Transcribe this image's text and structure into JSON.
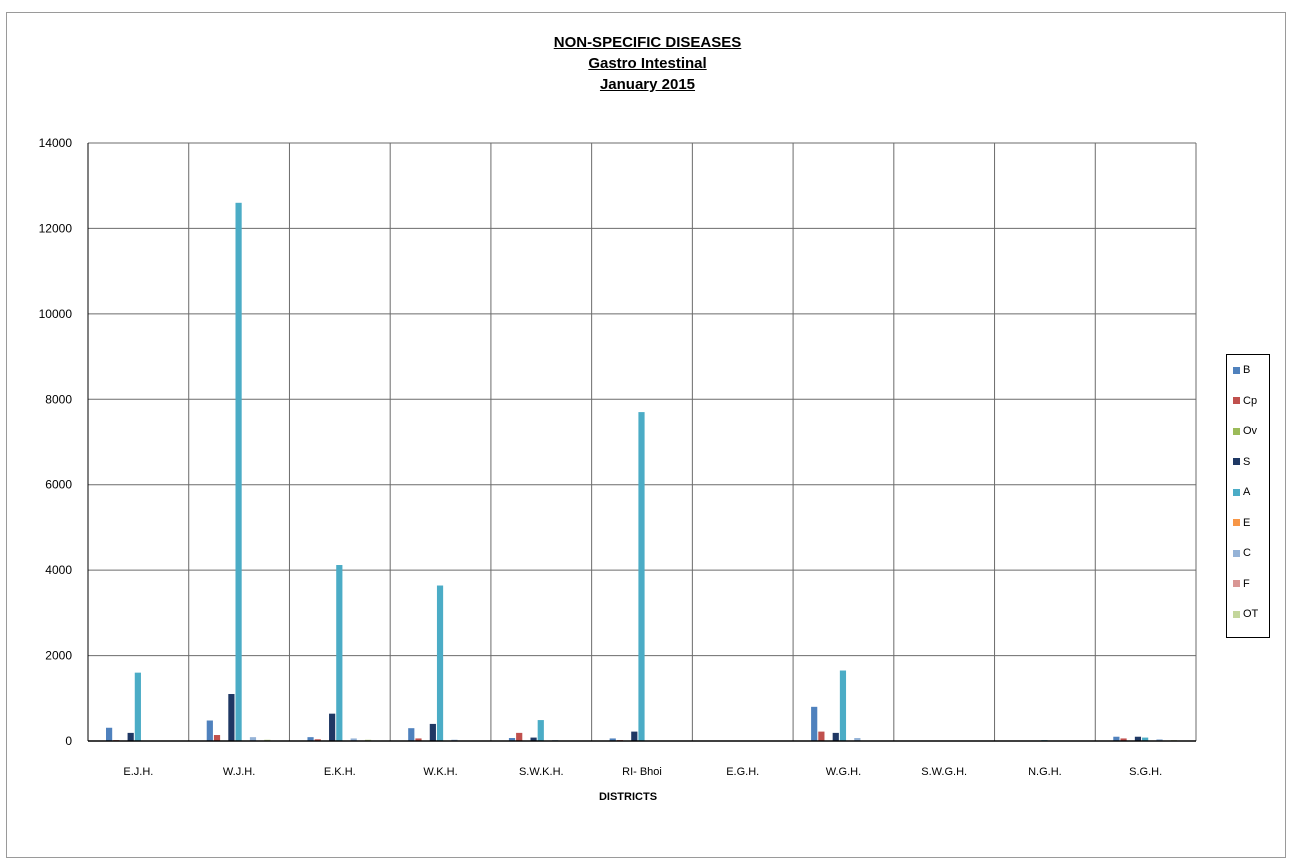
{
  "chart_data": {
    "type": "bar",
    "title": "NON-SPECIFIC DISEASES",
    "subtitle": "Gastro Intestinal",
    "period": "January 2015",
    "xlabel": "DISTRICTS",
    "ylabel": "",
    "ylim": [
      0,
      14000
    ],
    "yticks": [
      "0",
      "2000",
      "4000",
      "6000",
      "8000",
      "10000",
      "12000",
      "14000"
    ],
    "grid": true,
    "legend_position": "right",
    "categories": [
      "E.J.H.",
      "W.J.H.",
      "E.K.H.",
      "W.K.H.",
      "S.W.K.H.",
      "RI- Bhoi",
      "E.G.H.",
      "W.G.H.",
      "S.W.G.H.",
      "N.G.H.",
      "S.G.H."
    ],
    "series": [
      {
        "name": "B",
        "color": "#4f81bd",
        "values": [
          310,
          480,
          90,
          300,
          70,
          60,
          0,
          800,
          0,
          0,
          100
        ]
      },
      {
        "name": "Cp",
        "color": "#c0504d",
        "values": [
          20,
          140,
          40,
          60,
          190,
          20,
          0,
          220,
          0,
          0,
          60
        ]
      },
      {
        "name": "Ov",
        "color": "#9bbb59",
        "values": [
          0,
          0,
          0,
          0,
          0,
          0,
          0,
          0,
          0,
          0,
          0
        ]
      },
      {
        "name": "S",
        "color": "#1f3864",
        "values": [
          190,
          1100,
          640,
          400,
          80,
          220,
          0,
          190,
          0,
          0,
          100
        ]
      },
      {
        "name": "A",
        "color": "#4bacc6",
        "values": [
          1600,
          12600,
          4120,
          3640,
          490,
          7700,
          0,
          1650,
          0,
          20,
          80
        ]
      },
      {
        "name": "E",
        "color": "#f79646",
        "values": [
          0,
          10,
          0,
          0,
          0,
          0,
          0,
          0,
          0,
          0,
          0
        ]
      },
      {
        "name": "C",
        "color": "#95b3d7",
        "values": [
          0,
          90,
          60,
          30,
          20,
          0,
          0,
          70,
          0,
          10,
          40
        ]
      },
      {
        "name": "F",
        "color": "#d99694",
        "values": [
          0,
          0,
          0,
          0,
          0,
          0,
          0,
          0,
          0,
          0,
          0
        ]
      },
      {
        "name": "OT",
        "color": "#c3d69b",
        "values": [
          10,
          30,
          30,
          10,
          10,
          10,
          0,
          10,
          0,
          0,
          20
        ]
      }
    ]
  }
}
